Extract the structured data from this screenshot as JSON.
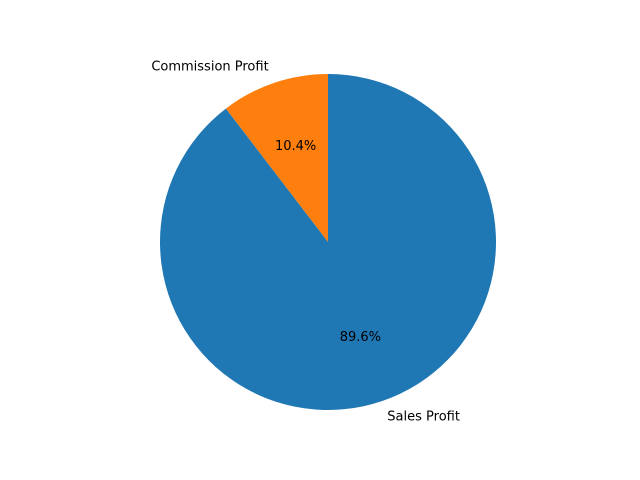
{
  "chart_data": {
    "type": "pie",
    "title": "",
    "start_angle_deg": 90,
    "direction": "counterclockwise",
    "slices": [
      {
        "label": "Commission Profit",
        "value": 10.4,
        "pct_label": "10.4%",
        "color": "#ff7f0e"
      },
      {
        "label": "Sales Profit",
        "value": 89.6,
        "pct_label": "89.6%",
        "color": "#1f77b4"
      }
    ]
  }
}
